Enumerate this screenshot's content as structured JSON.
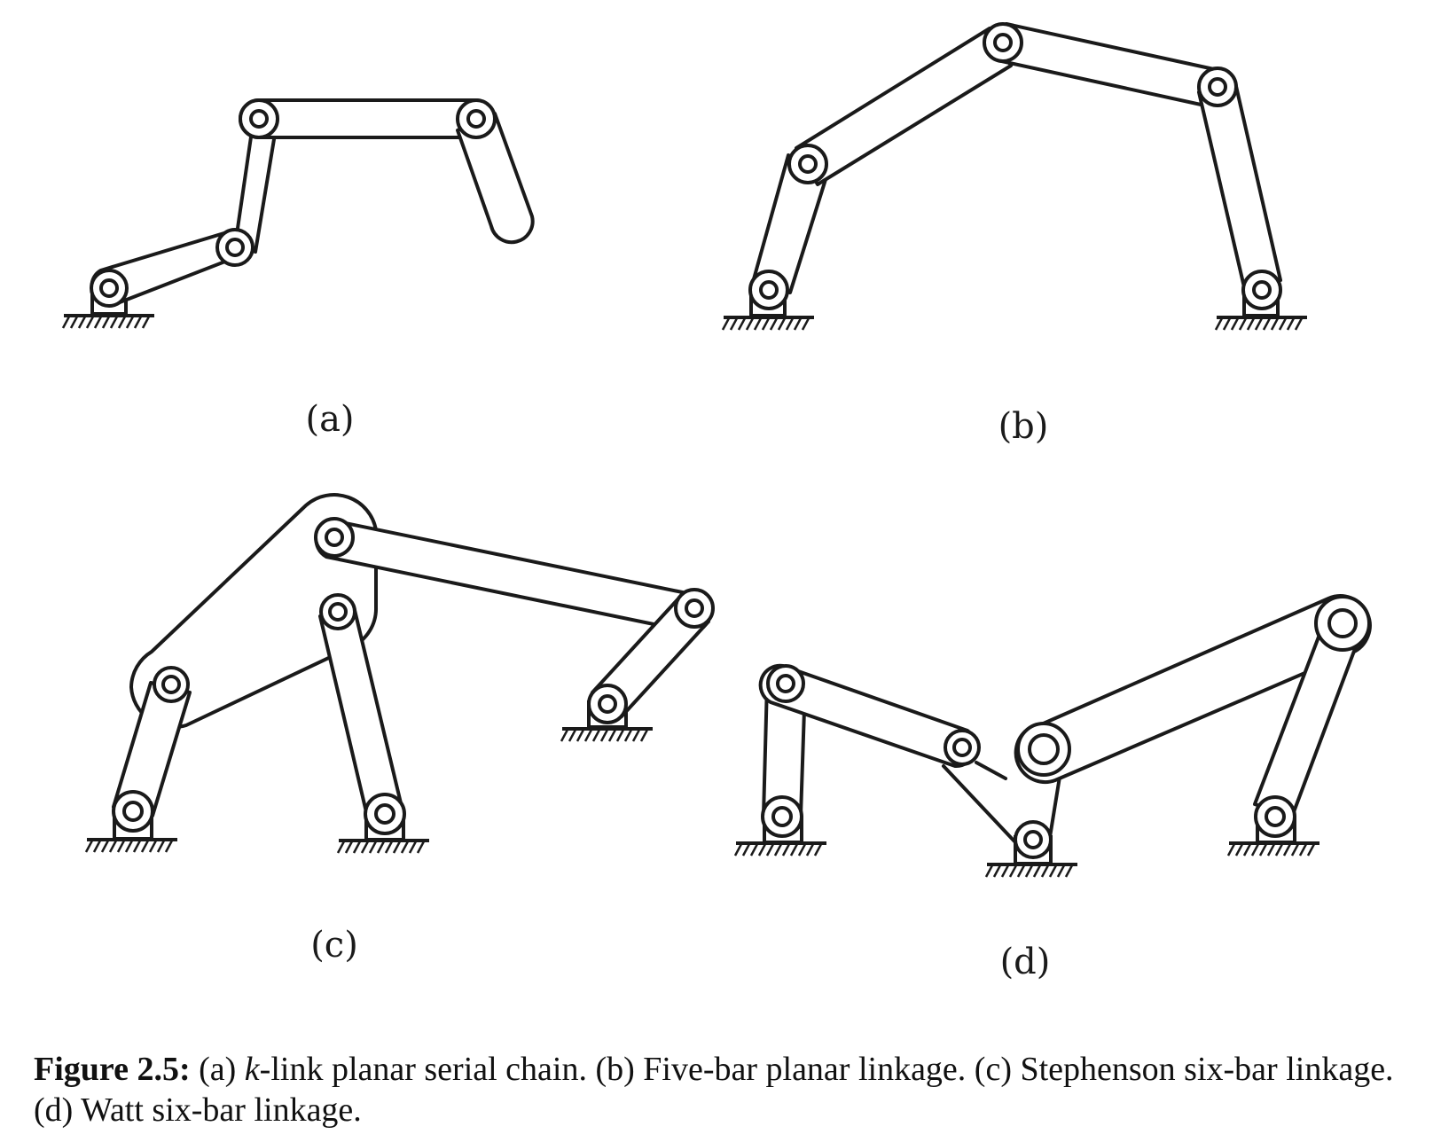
{
  "figure": {
    "panels": [
      {
        "id": "a",
        "label": "(a)"
      },
      {
        "id": "b",
        "label": "(b)"
      },
      {
        "id": "c",
        "label": "(c)"
      },
      {
        "id": "d",
        "label": "(d)"
      }
    ]
  },
  "caption": {
    "label": "Figure 2.5:",
    "text_a_prefix": " (a) ",
    "k": "k",
    "text_rest": "-link planar serial chain.  (b) Five-bar planar linkage.  (c) Stephenson six-bar linkage.  (d) Watt six-bar linkage."
  }
}
